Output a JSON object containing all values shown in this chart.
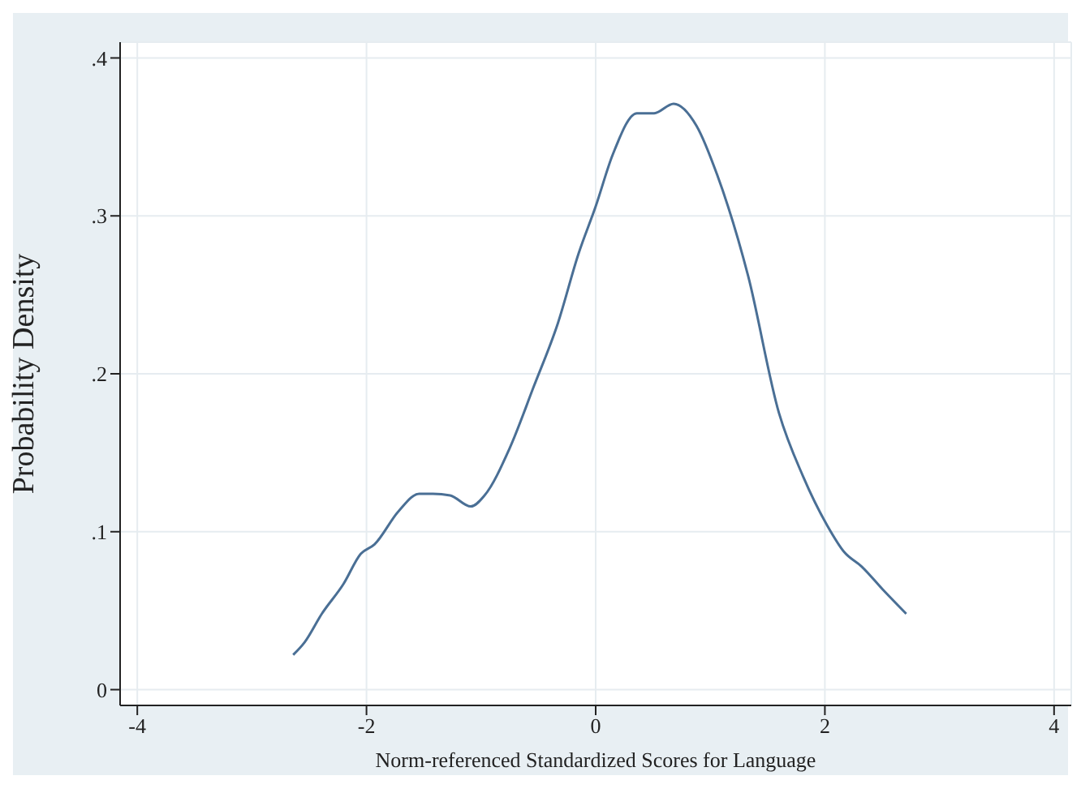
{
  "chart_data": {
    "type": "line",
    "xlabel": "Norm-referenced Standardized Scores for Language",
    "ylabel": "Probability Density",
    "xlim": [
      -4.15,
      4.15
    ],
    "xticks": [
      -4,
      -2,
      0,
      2,
      4
    ],
    "ylim": [
      -0.01,
      0.41
    ],
    "yticks": [
      0,
      {
        "value": 0.1,
        "label": ".1"
      },
      {
        "value": 0.2,
        "label": ".2"
      },
      {
        "value": 0.3,
        "label": ".3"
      },
      {
        "value": 0.4,
        "label": ".4"
      }
    ],
    "grid": true,
    "legend": false,
    "marker": "none",
    "line_style": "solid",
    "x": [
      -2.64,
      -2.54,
      -2.39,
      -2.2,
      -2.05,
      -1.93,
      -1.72,
      -1.54,
      -1.42,
      -1.27,
      -1.09,
      -0.97,
      -0.75,
      -0.54,
      -0.33,
      -0.15,
      0,
      0.15,
      0.36,
      0.51,
      0.68,
      0.88,
      1.06,
      1.33,
      1.6,
      1.81,
      2.02,
      2.17,
      2.32,
      2.51,
      2.71
    ],
    "series": [
      {
        "color": "#4a6f95",
        "values": [
          0.022,
          0.03,
          0.048,
          0.067,
          0.086,
          0.092,
          0.113,
          0.124,
          0.124,
          0.123,
          0.116,
          0.123,
          0.153,
          0.192,
          0.232,
          0.276,
          0.306,
          0.339,
          0.365,
          0.365,
          0.371,
          0.357,
          0.326,
          0.262,
          0.175,
          0.135,
          0.104,
          0.087,
          0.078,
          0.063,
          0.048
        ]
      }
    ]
  }
}
